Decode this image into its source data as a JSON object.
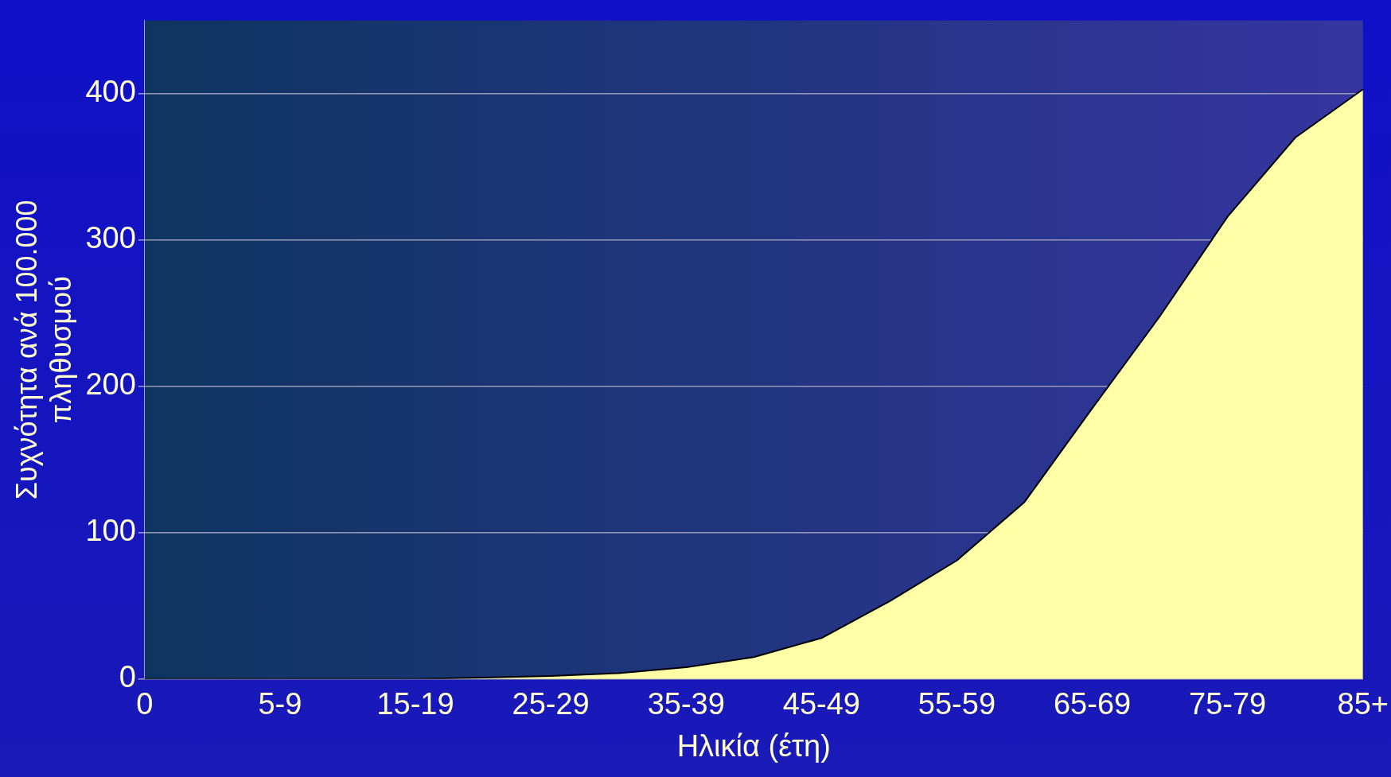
{
  "chart_data": {
    "type": "area",
    "xlabel": "Ηλικία (έτη)",
    "ylabel": "Συχνότητα ανά 100.000\nπληθυσμού",
    "categories": [
      "0",
      null,
      "5-9",
      null,
      "15-19",
      null,
      "25-29",
      null,
      "35-39",
      null,
      "45-49",
      null,
      "55-59",
      null,
      "65-69",
      null,
      "75-79",
      null,
      "85+"
    ],
    "series": [
      {
        "color": "#ffffa8",
        "values": [
          0,
          0,
          0,
          0,
          0,
          1,
          2,
          4,
          8,
          15,
          28,
          53,
          81,
          121,
          185,
          248,
          316,
          370,
          403
        ]
      }
    ],
    "ylim": [
      0,
      450
    ],
    "yticks": [
      0,
      100,
      200,
      300,
      400
    ],
    "grid": "y",
    "legend": false
  }
}
